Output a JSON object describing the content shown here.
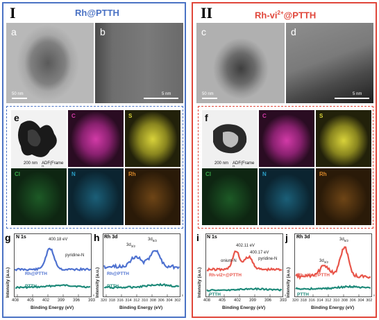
{
  "panel_I": {
    "numeral": "I",
    "title": "Rh@PTTH",
    "color": "#4a72c4",
    "tem_letters": [
      "a",
      "b"
    ],
    "tem_scale": [
      "50 nm",
      "5 nm"
    ],
    "eds": {
      "letter": "e",
      "image_caption": "ADF(Frame I)",
      "image_scale": "200 nm",
      "maps": [
        "C",
        "S",
        "Cl",
        "N",
        "Rh"
      ]
    },
    "xps_n1s": {
      "letter": "g",
      "title": "N 1s",
      "peak_label": "400.18 eV",
      "assignment": "pyridine-N",
      "sample_label": "Rh@PTTH",
      "ref_label": "PTTH",
      "xlabel": "Binding Energy (eV)",
      "ylabel": "Intensity (a.u.)",
      "xticks": [
        "408",
        "405",
        "402",
        "399",
        "396",
        "393"
      ]
    },
    "xps_rh3d": {
      "letter": "h",
      "title": "Rh 3d",
      "peak_labels": [
        "3d3/2",
        "3d5/2"
      ],
      "sample_label": "Rh@PTTH",
      "ref_label": "PTTH",
      "xlabel": "Binding Energy (eV)",
      "ylabel": "Intensity (a.u.)",
      "xticks": [
        "320",
        "318",
        "316",
        "314",
        "312",
        "310",
        "308",
        "306",
        "304",
        "302"
      ]
    }
  },
  "panel_II": {
    "numeral": "II",
    "title_main": "Rh-vi",
    "title_sup": "2+",
    "title_end": "@PTTH",
    "color": "#e0463a",
    "tem_letters": [
      "c",
      "d"
    ],
    "tem_scale": [
      "50 nm",
      "5 nm"
    ],
    "eds": {
      "letter": "f",
      "image_caption": "ADF(Frame I)",
      "image_scale": "200 nm",
      "maps": [
        "C",
        "S",
        "Cl",
        "N",
        "Rh"
      ]
    },
    "xps_n1s": {
      "letter": "i",
      "title": "N 1s",
      "peak_labels": [
        "402.11 eV",
        "400.17 eV"
      ],
      "assignments": [
        "onium-N",
        "pyridine-N"
      ],
      "sample_label": "Rh-vi2+@PTTH",
      "ref_label": "PTTH",
      "xlabel": "Binding Energy (eV)",
      "ylabel": "Intensity (a.u.)",
      "xticks": [
        "408",
        "405",
        "402",
        "399",
        "396",
        "393"
      ]
    },
    "xps_rh3d": {
      "letter": "j",
      "title": "Rh 3d",
      "peak_labels": [
        "3d3/2",
        "3d5/2"
      ],
      "sample_label": "Rh-vi2+@PTTH",
      "ref_label": "PTTH",
      "xlabel": "Binding Energy (eV)",
      "ylabel": "Intensity (a.u.)",
      "xticks": [
        "320",
        "318",
        "316",
        "314",
        "312",
        "310",
        "308",
        "306",
        "304",
        "302"
      ]
    }
  },
  "colors": {
    "blue_frame": "#4a72c4",
    "red_frame": "#e0463a",
    "rh_blue_curve": "#4f72d0",
    "rh_red_curve": "#e8554a",
    "ptth_curve": "#1f8a7a",
    "map_C": "#d23aa7",
    "map_S": "#d8d23a",
    "map_Cl": "#2e8b3a",
    "map_N": "#2aa0c8",
    "map_Rh": "#d8882a"
  }
}
